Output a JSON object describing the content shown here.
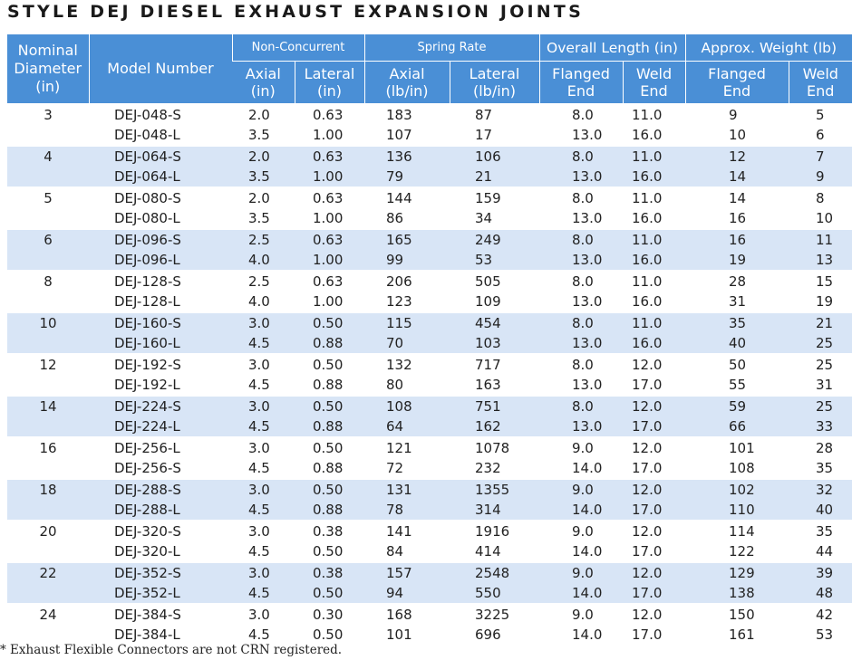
{
  "title": "STYLE DEJ DIESEL EXHAUST EXPANSION JOINTS",
  "headers": {
    "nominal": [
      "Nominal",
      "Diameter",
      "(in)"
    ],
    "model": "Model Number",
    "non_concurrent": "Non-Concurrent",
    "spring_rate": "Spring Rate",
    "overall_length": "Overall Length (in)",
    "approx_weight": "Approx. Weight (lb)",
    "nc_axial": [
      "Axial",
      "(in)"
    ],
    "nc_lateral": [
      "Lateral",
      "(in)"
    ],
    "sr_axial": [
      "Axial",
      "(lb/in)"
    ],
    "sr_lateral": [
      "Lateral",
      "(lb/in)"
    ],
    "ol_flanged": [
      "Flanged",
      "End"
    ],
    "ol_weld": [
      "Weld",
      "End"
    ],
    "w_flanged": [
      "Flanged",
      "End"
    ],
    "w_weld": [
      "Weld",
      "End"
    ]
  },
  "groups": [
    {
      "nominal": "3",
      "rows": [
        [
          "DEJ-048-S",
          "2.0",
          "0.63",
          "183",
          "87",
          "8.0",
          "11.0",
          "9",
          "5"
        ],
        [
          "DEJ-048-L",
          "3.5",
          "1.00",
          "107",
          "17",
          "13.0",
          "16.0",
          "10",
          "6"
        ]
      ]
    },
    {
      "nominal": "4",
      "rows": [
        [
          "DEJ-064-S",
          "2.0",
          "0.63",
          "136",
          "106",
          "8.0",
          "11.0",
          "12",
          "7"
        ],
        [
          "DEJ-064-L",
          "3.5",
          "1.00",
          "79",
          "21",
          "13.0",
          "16.0",
          "14",
          "9"
        ]
      ]
    },
    {
      "nominal": "5",
      "rows": [
        [
          "DEJ-080-S",
          "2.0",
          "0.63",
          "144",
          "159",
          "8.0",
          "11.0",
          "14",
          "8"
        ],
        [
          "DEJ-080-L",
          "3.5",
          "1.00",
          "86",
          "34",
          "13.0",
          "16.0",
          "16",
          "10"
        ]
      ]
    },
    {
      "nominal": "6",
      "rows": [
        [
          "DEJ-096-S",
          "2.5",
          "0.63",
          "165",
          "249",
          "8.0",
          "11.0",
          "16",
          "11"
        ],
        [
          "DEJ-096-L",
          "4.0",
          "1.00",
          "99",
          "53",
          "13.0",
          "16.0",
          "19",
          "13"
        ]
      ]
    },
    {
      "nominal": "8",
      "rows": [
        [
          "DEJ-128-S",
          "2.5",
          "0.63",
          "206",
          "505",
          "8.0",
          "11.0",
          "28",
          "15"
        ],
        [
          "DEJ-128-L",
          "4.0",
          "1.00",
          "123",
          "109",
          "13.0",
          "16.0",
          "31",
          "19"
        ]
      ]
    },
    {
      "nominal": "10",
      "rows": [
        [
          "DEJ-160-S",
          "3.0",
          "0.50",
          "115",
          "454",
          "8.0",
          "11.0",
          "35",
          "21"
        ],
        [
          "DEJ-160-L",
          "4.5",
          "0.88",
          "70",
          "103",
          "13.0",
          "16.0",
          "40",
          "25"
        ]
      ]
    },
    {
      "nominal": "12",
      "rows": [
        [
          "DEJ-192-S",
          "3.0",
          "0.50",
          "132",
          "717",
          "8.0",
          "12.0",
          "50",
          "25"
        ],
        [
          "DEJ-192-L",
          "4.5",
          "0.88",
          "80",
          "163",
          "13.0",
          "17.0",
          "55",
          "31"
        ]
      ]
    },
    {
      "nominal": "14",
      "rows": [
        [
          "DEJ-224-S",
          "3.0",
          "0.50",
          "108",
          "751",
          "8.0",
          "12.0",
          "59",
          "25"
        ],
        [
          "DEJ-224-L",
          "4.5",
          "0.88",
          "64",
          "162",
          "13.0",
          "17.0",
          "66",
          "33"
        ]
      ]
    },
    {
      "nominal": "16",
      "rows": [
        [
          "DEJ-256-L",
          "3.0",
          "0.50",
          "121",
          "1078",
          "9.0",
          "12.0",
          "101",
          "28"
        ],
        [
          "DEJ-256-S",
          "4.5",
          "0.88",
          "72",
          "232",
          "14.0",
          "17.0",
          "108",
          "35"
        ]
      ]
    },
    {
      "nominal": "18",
      "rows": [
        [
          "DEJ-288-S",
          "3.0",
          "0.50",
          "131",
          "1355",
          "9.0",
          "12.0",
          "102",
          "32"
        ],
        [
          "DEJ-288-L",
          "4.5",
          "0.88",
          "78",
          "314",
          "14.0",
          "17.0",
          "110",
          "40"
        ]
      ]
    },
    {
      "nominal": "20",
      "rows": [
        [
          "DEJ-320-S",
          "3.0",
          "0.38",
          "141",
          "1916",
          "9.0",
          "12.0",
          "114",
          "35"
        ],
        [
          "DEJ-320-L",
          "4.5",
          "0.50",
          "84",
          "414",
          "14.0",
          "17.0",
          "122",
          "44"
        ]
      ]
    },
    {
      "nominal": "22",
      "rows": [
        [
          "DEJ-352-S",
          "3.0",
          "0.38",
          "157",
          "2548",
          "9.0",
          "12.0",
          "129",
          "39"
        ],
        [
          "DEJ-352-L",
          "4.5",
          "0.50",
          "94",
          "550",
          "14.0",
          "17.0",
          "138",
          "48"
        ]
      ]
    },
    {
      "nominal": "24",
      "rows": [
        [
          "DEJ-384-S",
          "3.0",
          "0.30",
          "168",
          "3225",
          "9.0",
          "12.0",
          "150",
          "42"
        ],
        [
          "DEJ-384-L",
          "4.5",
          "0.50",
          "101",
          "696",
          "14.0",
          "17.0",
          "161",
          "53"
        ]
      ]
    }
  ],
  "footnote": "* Exhaust Flexible Connectors are not CRN registered."
}
